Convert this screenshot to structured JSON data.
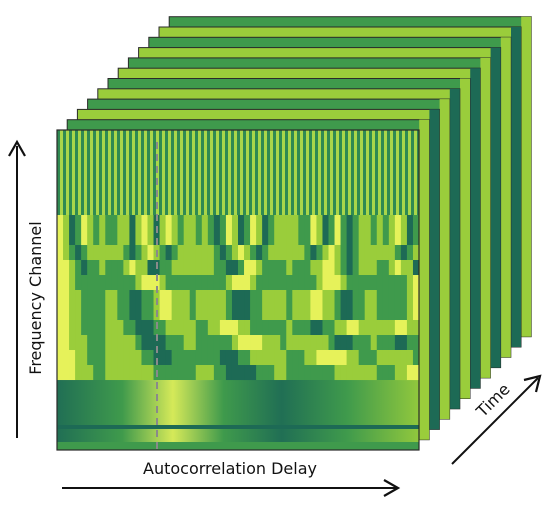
{
  "labels": {
    "x_axis": "Autocorrelation Delay",
    "y_axis": "Frequency Channel",
    "time_axis": "Time"
  },
  "frames": {
    "count": 12
  },
  "colors": {
    "dark": "#1d6a55",
    "mid": "#3f9a4c",
    "light": "#9acd3b",
    "bright": "#e6f25a",
    "ink": "#111111",
    "border": "#2a2a2a",
    "dashed_marker": "#8a8a8a"
  }
}
